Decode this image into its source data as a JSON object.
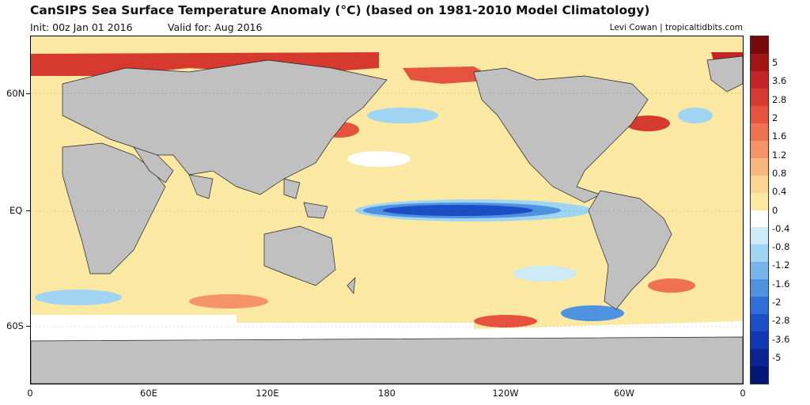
{
  "header": {
    "title": "CanSIPS Sea Surface Temperature Anomaly (°C) (based on 1981-2010 Model Climatology)",
    "init": "Init: 00z Jan 01 2016",
    "valid": "Valid for: Aug 2016",
    "credit": "Levi Cowan | tropicaltidbits.com"
  },
  "map": {
    "y_ticks": [
      "60N",
      "EQ",
      "60S"
    ],
    "x_ticks": [
      "0",
      "60E",
      "120E",
      "180",
      "120W",
      "60W",
      "0"
    ],
    "land_color": "#c0c0c0",
    "background_anomaly_color": "#fbe9a3"
  },
  "colorbar": {
    "labels": [
      "5",
      "3.6",
      "2.8",
      "2",
      "1.6",
      "1.2",
      "0.8",
      "0.4",
      "0",
      "-0.4",
      "-0.8",
      "-1.2",
      "-1.6",
      "-2",
      "-2.8",
      "-3.6",
      "-5"
    ],
    "colors": [
      "#7a0a0a",
      "#a21515",
      "#c42424",
      "#d63a2f",
      "#e5533f",
      "#ef7351",
      "#f59466",
      "#f8b57c",
      "#fbd693",
      "#fbe9a3",
      "#ffffff",
      "#cdebf7",
      "#9fd4f3",
      "#77b5ea",
      "#4f93e0",
      "#2f6ed6",
      "#1c4fc7",
      "#1038b3",
      "#0a2494",
      "#061877"
    ]
  }
}
